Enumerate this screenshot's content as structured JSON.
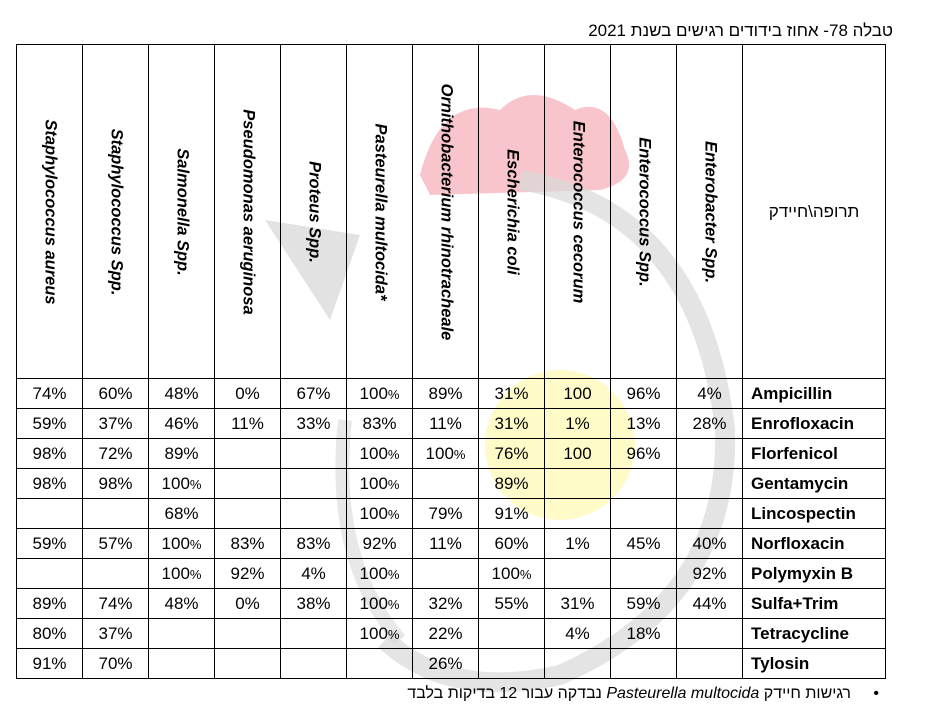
{
  "caption": "טבלה 78- אחוז בידודים רגישים בשנת 2021",
  "corner_label": "תרופה\\חיידק",
  "bacteria": [
    "Staphylococcus aureus",
    "Staphylococcus Spp.",
    "Salmonella Spp.",
    "Pseudomonas aeruginosa",
    "Proteus Spp.",
    "Pasteurella multocida*",
    "Ornithobacterium rhinotracheale",
    "Escherichia coli",
    "Enterococcus cecorum",
    "Enterococcus Spp.",
    "Enterobacter Spp."
  ],
  "rows": [
    {
      "drug": "Ampicillin",
      "cells": [
        "74%",
        "60%",
        "48%",
        "0%",
        "67%",
        "100%",
        "89%",
        "31%",
        "100",
        "96%",
        "4%"
      ]
    },
    {
      "drug": "Enrofloxacin",
      "cells": [
        "59%",
        "37%",
        "46%",
        "11%",
        "33%",
        "83%",
        "11%",
        "31%",
        "1%",
        "13%",
        "28%"
      ]
    },
    {
      "drug": "Florfenicol",
      "cells": [
        "98%",
        "72%",
        "89%",
        "",
        "",
        "100%",
        "100%",
        "76%",
        "100",
        "96%",
        ""
      ]
    },
    {
      "drug": "Gentamycin",
      "cells": [
        "98%",
        "98%",
        "100%",
        "",
        "",
        "100%",
        "",
        "89%",
        "",
        "",
        ""
      ]
    },
    {
      "drug": "Lincospectin",
      "cells": [
        "",
        "",
        "68%",
        "",
        "",
        "100%",
        "79%",
        "91%",
        "",
        "",
        ""
      ]
    },
    {
      "drug": "Norfloxacin",
      "cells": [
        "59%",
        "57%",
        "100%",
        "83%",
        "83%",
        "92%",
        "11%",
        "60%",
        "1%",
        "45%",
        "40%"
      ]
    },
    {
      "drug": "Polymyxin B",
      "cells": [
        "",
        "",
        "100%",
        "92%",
        "4%",
        "100%",
        "",
        "100%",
        "",
        "",
        "92%"
      ]
    },
    {
      "drug": "Sulfa+Trim",
      "cells": [
        "89%",
        "74%",
        "48%",
        "0%",
        "38%",
        "100%",
        "32%",
        "55%",
        "31%",
        "59%",
        "44%"
      ]
    },
    {
      "drug": "Tetracycline",
      "cells": [
        "80%",
        "37%",
        "",
        "",
        "",
        "100%",
        "22%",
        "",
        "4%",
        "18%",
        ""
      ]
    },
    {
      "drug": "Tylosin",
      "cells": [
        "91%",
        "70%",
        "",
        "",
        "",
        "",
        "26%",
        "",
        "",
        "",
        ""
      ]
    }
  ],
  "footnote": {
    "bullet": "•",
    "prefix": "רגישות חיידק",
    "organism": "Pasteurella multocida",
    "suffix": "נבדקה עבור 12 בדיקות בלבד"
  }
}
